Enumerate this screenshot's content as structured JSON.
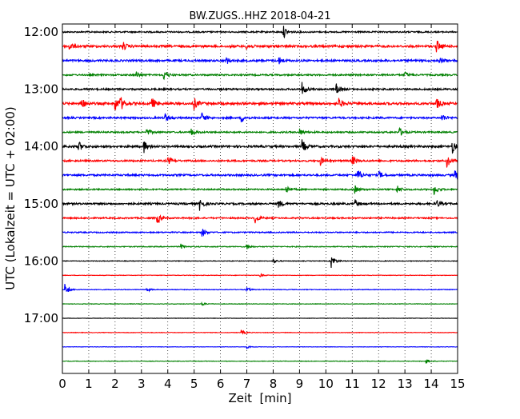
{
  "chart_data": {
    "type": "line",
    "title": "BW.ZUGS..HHZ 2018-04-21",
    "xlabel": "Zeit  [min]",
    "ylabel": "UTC (Lokalzeit = UTC + 02:00)",
    "xlim": [
      0,
      15
    ],
    "x_ticks": [
      "0",
      "1",
      "2",
      "3",
      "4",
      "5",
      "6",
      "7",
      "8",
      "9",
      "10",
      "11",
      "12",
      "13",
      "14",
      "15"
    ],
    "y_ticks": [
      "12:00",
      "13:00",
      "14:00",
      "15:00",
      "16:00",
      "17:00"
    ],
    "grid": "vertical dotted",
    "colors": [
      "#000000",
      "#ff0000",
      "#0000ff",
      "#008000"
    ],
    "traces": [
      {
        "start": "12:00",
        "color": "#000000",
        "level": 0.55,
        "events": [
          [
            8.4,
            1.4
          ]
        ]
      },
      {
        "start": "12:15",
        "color": "#ff0000",
        "level": 0.85,
        "events": [
          [
            0.25,
            1.0
          ],
          [
            2.3,
            1.0
          ],
          [
            7.0,
            0.8
          ],
          [
            14.2,
            1.5
          ]
        ]
      },
      {
        "start": "12:30",
        "color": "#0000ff",
        "level": 0.75,
        "events": [
          [
            6.2,
            1.0
          ],
          [
            8.2,
            1.0
          ],
          [
            14.3,
            0.8
          ]
        ]
      },
      {
        "start": "12:45",
        "color": "#008000",
        "level": 0.6,
        "events": [
          [
            2.8,
            0.8
          ],
          [
            3.85,
            1.4
          ],
          [
            13.0,
            0.8
          ]
        ]
      },
      {
        "start": "13:00",
        "color": "#000000",
        "level": 0.65,
        "events": [
          [
            9.1,
            1.6
          ],
          [
            10.4,
            1.2
          ]
        ]
      },
      {
        "start": "13:15",
        "color": "#ff0000",
        "level": 0.9,
        "events": [
          [
            0.7,
            1.6
          ],
          [
            2.0,
            1.8
          ],
          [
            2.2,
            1.5
          ],
          [
            3.4,
            1.3
          ],
          [
            5.0,
            1.4
          ],
          [
            10.5,
            1.1
          ],
          [
            14.2,
            1.3
          ]
        ]
      },
      {
        "start": "13:30",
        "color": "#0000ff",
        "level": 0.7,
        "events": [
          [
            3.9,
            1.0
          ],
          [
            5.3,
            1.2
          ],
          [
            6.8,
            1.0
          ],
          [
            14.4,
            1.0
          ]
        ]
      },
      {
        "start": "13:45",
        "color": "#008000",
        "level": 0.6,
        "events": [
          [
            3.2,
            0.8
          ],
          [
            4.9,
            0.8
          ],
          [
            9.0,
            0.8
          ],
          [
            12.8,
            1.0
          ]
        ]
      },
      {
        "start": "14:00",
        "color": "#000000",
        "level": 0.8,
        "events": [
          [
            0.6,
            1.4
          ],
          [
            3.1,
            1.4
          ],
          [
            9.1,
            1.6
          ],
          [
            14.8,
            1.5
          ]
        ]
      },
      {
        "start": "14:15",
        "color": "#ff0000",
        "level": 0.65,
        "events": [
          [
            4.0,
            1.0
          ],
          [
            9.8,
            1.0
          ],
          [
            11.0,
            1.2
          ],
          [
            14.6,
            1.6
          ]
        ]
      },
      {
        "start": "14:30",
        "color": "#0000ff",
        "level": 0.7,
        "events": [
          [
            11.2,
            1.5
          ],
          [
            12.0,
            1.0
          ],
          [
            14.9,
            1.1
          ]
        ]
      },
      {
        "start": "14:45",
        "color": "#008000",
        "level": 0.55,
        "events": [
          [
            8.5,
            1.0
          ],
          [
            11.1,
            1.0
          ],
          [
            12.7,
            1.0
          ],
          [
            14.1,
            1.4
          ]
        ]
      },
      {
        "start": "15:00",
        "color": "#000000",
        "level": 0.7,
        "events": [
          [
            5.2,
            1.6
          ],
          [
            8.2,
            1.0
          ],
          [
            11.1,
            1.0
          ],
          [
            14.2,
            1.0
          ]
        ]
      },
      {
        "start": "15:15",
        "color": "#ff0000",
        "level": 0.55,
        "events": [
          [
            3.6,
            1.3
          ],
          [
            7.3,
            1.3
          ]
        ]
      },
      {
        "start": "15:30",
        "color": "#0000ff",
        "level": 0.45,
        "events": [
          [
            5.3,
            1.0
          ]
        ]
      },
      {
        "start": "15:45",
        "color": "#008000",
        "level": 0.35,
        "events": [
          [
            4.5,
            0.6
          ],
          [
            7.0,
            0.6
          ]
        ]
      },
      {
        "start": "16:00",
        "color": "#000000",
        "level": 0.25,
        "events": [
          [
            8.0,
            0.6
          ],
          [
            10.2,
            1.8
          ]
        ]
      },
      {
        "start": "16:15",
        "color": "#ff0000",
        "level": 0.2,
        "events": [
          [
            7.5,
            0.5
          ]
        ]
      },
      {
        "start": "16:30",
        "color": "#0000ff",
        "level": 0.25,
        "events": [
          [
            0.1,
            1.5
          ],
          [
            3.2,
            0.5
          ],
          [
            7.0,
            0.5
          ]
        ]
      },
      {
        "start": "16:45",
        "color": "#008000",
        "level": 0.2,
        "events": [
          [
            5.3,
            0.4
          ]
        ]
      },
      {
        "start": "17:00",
        "color": "#000000",
        "level": 0.15,
        "events": []
      },
      {
        "start": "17:15",
        "color": "#ff0000",
        "level": 0.2,
        "events": [
          [
            6.8,
            0.6
          ]
        ]
      },
      {
        "start": "17:30",
        "color": "#0000ff",
        "level": 0.15,
        "events": [
          [
            7.0,
            0.4
          ]
        ]
      },
      {
        "start": "17:45",
        "color": "#008000",
        "level": 0.2,
        "events": [
          [
            13.8,
            0.6
          ]
        ]
      }
    ]
  }
}
